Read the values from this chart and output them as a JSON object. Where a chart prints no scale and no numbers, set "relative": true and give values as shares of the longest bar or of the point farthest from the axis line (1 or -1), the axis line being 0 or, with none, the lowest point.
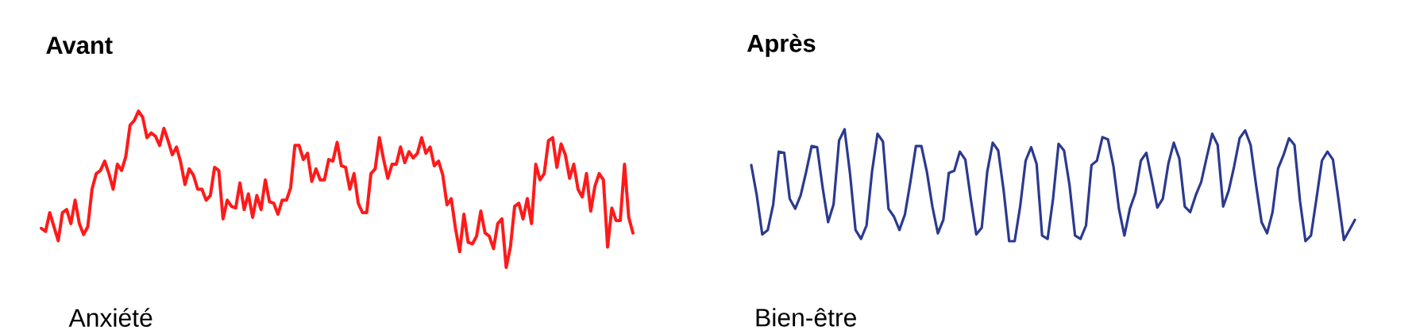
{
  "chart_data": [
    {
      "type": "line",
      "relative": true,
      "title": "Avant",
      "annotations": [
        "Anxiété"
      ],
      "color": "#ff1a1a",
      "values": [
        0.25,
        0.23,
        0.35,
        0.26,
        0.17,
        0.35,
        0.37,
        0.28,
        0.43,
        0.28,
        0.21,
        0.26,
        0.5,
        0.6,
        0.62,
        0.68,
        0.6,
        0.5,
        0.66,
        0.62,
        0.71,
        0.91,
        0.94,
        1.0,
        0.96,
        0.83,
        0.86,
        0.84,
        0.78,
        0.89,
        0.81,
        0.72,
        0.77,
        0.67,
        0.53,
        0.63,
        0.59,
        0.5,
        0.5,
        0.43,
        0.46,
        0.64,
        0.62,
        0.31,
        0.43,
        0.39,
        0.38,
        0.54,
        0.37,
        0.47,
        0.32,
        0.46,
        0.37,
        0.56,
        0.42,
        0.41,
        0.34,
        0.43,
        0.43,
        0.51,
        0.78,
        0.78,
        0.69,
        0.73,
        0.55,
        0.63,
        0.56,
        0.56,
        0.69,
        0.68,
        0.8,
        0.65,
        0.64,
        0.5,
        0.6,
        0.41,
        0.35,
        0.35,
        0.6,
        0.63,
        0.83,
        0.69,
        0.57,
        0.66,
        0.66,
        0.77,
        0.67,
        0.74,
        0.7,
        0.73,
        0.83,
        0.73,
        0.77,
        0.65,
        0.68,
        0.59,
        0.4,
        0.44,
        0.25,
        0.1,
        0.34,
        0.16,
        0.15,
        0.2,
        0.36,
        0.22,
        0.2,
        0.12,
        0.28,
        0.31,
        0.0,
        0.13,
        0.39,
        0.41,
        0.31,
        0.44,
        0.28,
        0.66,
        0.56,
        0.6,
        0.81,
        0.83,
        0.64,
        0.79,
        0.72,
        0.57,
        0.66,
        0.5,
        0.45,
        0.6,
        0.36,
        0.52,
        0.6,
        0.56,
        0.13,
        0.38,
        0.3,
        0.3,
        0.66,
        0.32,
        0.22
      ],
      "categories": [
        null,
        null,
        null,
        null,
        null,
        null,
        null,
        null,
        null,
        null,
        null,
        null,
        null,
        null,
        null,
        null,
        null,
        null,
        null,
        null,
        null,
        null,
        null,
        null,
        null,
        null,
        null,
        null,
        null,
        null,
        null,
        null,
        null,
        null,
        null,
        null,
        null,
        null,
        null,
        null,
        null,
        null,
        null,
        null,
        null,
        null,
        null,
        null,
        null,
        null,
        null,
        null,
        null,
        null,
        null,
        null,
        null,
        null,
        null,
        null,
        null,
        null,
        null,
        null,
        null,
        null,
        null,
        null,
        null,
        null,
        null,
        null,
        null,
        null,
        null,
        null,
        null,
        null,
        null,
        null,
        null,
        null,
        null,
        null,
        null,
        null,
        null,
        null,
        null,
        null,
        null,
        null,
        null,
        null,
        null,
        null,
        null,
        null,
        null,
        null,
        null,
        null,
        null,
        null,
        null,
        null,
        null,
        null,
        null,
        null,
        null,
        null,
        null,
        null,
        null,
        null,
        null,
        null,
        null,
        null,
        null,
        null,
        null,
        null,
        null,
        null,
        null,
        null,
        null,
        null,
        null,
        null,
        null,
        null,
        null,
        null,
        null,
        null,
        null,
        null,
        null
      ]
    },
    {
      "type": "line",
      "relative": true,
      "title": "Après",
      "annotations": [
        "Bien-être"
      ],
      "color": "#2b3a8f",
      "values": [
        0.68,
        0.41,
        0.06,
        0.1,
        0.33,
        0.8,
        0.79,
        0.38,
        0.29,
        0.41,
        0.62,
        0.85,
        0.84,
        0.48,
        0.17,
        0.33,
        0.9,
        1.0,
        0.6,
        0.1,
        0.02,
        0.14,
        0.62,
        0.96,
        0.89,
        0.29,
        0.22,
        0.1,
        0.24,
        0.53,
        0.85,
        0.85,
        0.62,
        0.31,
        0.07,
        0.19,
        0.61,
        0.63,
        0.8,
        0.73,
        0.38,
        0.06,
        0.12,
        0.62,
        0.88,
        0.81,
        0.45,
        0.0,
        0.0,
        0.31,
        0.72,
        0.84,
        0.69,
        0.05,
        0.02,
        0.38,
        0.87,
        0.81,
        0.5,
        0.05,
        0.02,
        0.14,
        0.68,
        0.72,
        0.93,
        0.91,
        0.67,
        0.29,
        0.05,
        0.29,
        0.43,
        0.72,
        0.79,
        0.55,
        0.3,
        0.38,
        0.69,
        0.88,
        0.74,
        0.31,
        0.26,
        0.41,
        0.53,
        0.75,
        0.96,
        0.86,
        0.31,
        0.45,
        0.67,
        0.92,
        0.99,
        0.86,
        0.5,
        0.17,
        0.07,
        0.26,
        0.65,
        0.77,
        0.92,
        0.86,
        0.36,
        0.0,
        0.05,
        0.38,
        0.72,
        0.8,
        0.73,
        0.38,
        0.01,
        0.1,
        0.19
      ],
      "categories": [
        null,
        null,
        null,
        null,
        null,
        null,
        null,
        null,
        null,
        null,
        null,
        null,
        null,
        null,
        null,
        null,
        null,
        null,
        null,
        null,
        null,
        null,
        null,
        null,
        null,
        null,
        null,
        null,
        null,
        null,
        null,
        null,
        null,
        null,
        null,
        null,
        null,
        null,
        null,
        null,
        null,
        null,
        null,
        null,
        null,
        null,
        null,
        null,
        null,
        null,
        null,
        null,
        null,
        null,
        null,
        null,
        null,
        null,
        null,
        null,
        null,
        null,
        null,
        null,
        null,
        null,
        null,
        null,
        null,
        null,
        null,
        null,
        null,
        null,
        null,
        null,
        null,
        null,
        null,
        null,
        null,
        null,
        null,
        null,
        null,
        null,
        null,
        null,
        null,
        null,
        null,
        null,
        null,
        null,
        null,
        null,
        null,
        null,
        null,
        null,
        null,
        null,
        null,
        null,
        null,
        null,
        null,
        null,
        null,
        null,
        null
      ]
    }
  ]
}
